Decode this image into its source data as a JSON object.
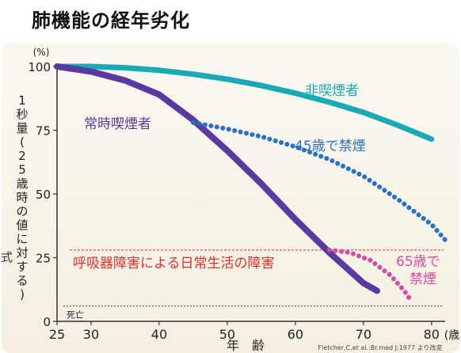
{
  "page_title": "肺機能の経年劣化",
  "chart_data": {
    "type": "line",
    "title": "肺機能の経年劣化",
    "xlabel": "年　齢",
    "x_unit": "(歳)",
    "ylabel": "1秒量(25歳時の値に対する)",
    "y_unit": "(%)",
    "xlim": [
      25,
      82
    ],
    "ylim": [
      0,
      100
    ],
    "x_ticks": [
      25,
      30,
      40,
      50,
      60,
      70,
      80
    ],
    "y_ticks": [
      0,
      25,
      50,
      75,
      100
    ],
    "series": [
      {
        "name": "非喫煙者",
        "color": "#1aa9b5",
        "style": "solid",
        "points": [
          [
            25,
            100
          ],
          [
            30,
            100
          ],
          [
            35,
            99.5
          ],
          [
            40,
            98.5
          ],
          [
            45,
            97
          ],
          [
            50,
            95
          ],
          [
            55,
            92.5
          ],
          [
            60,
            89.5
          ],
          [
            65,
            86
          ],
          [
            70,
            82
          ],
          [
            75,
            77
          ],
          [
            80,
            71.5
          ]
        ]
      },
      {
        "name": "常時喫煙者",
        "color": "#5a3aa0",
        "style": "solid",
        "points": [
          [
            25,
            100
          ],
          [
            30,
            98
          ],
          [
            35,
            94.5
          ],
          [
            40,
            89
          ],
          [
            45,
            79
          ],
          [
            50,
            67
          ],
          [
            55,
            54
          ],
          [
            60,
            40
          ],
          [
            65,
            27
          ],
          [
            70,
            15
          ],
          [
            72,
            12
          ]
        ]
      },
      {
        "name": "45歳で禁煙",
        "color": "#2a72c0",
        "style": "dotted",
        "points": [
          [
            45,
            78
          ],
          [
            50,
            75.5
          ],
          [
            55,
            72.5
          ],
          [
            60,
            68.5
          ],
          [
            65,
            63.5
          ],
          [
            70,
            57
          ],
          [
            75,
            48
          ],
          [
            80,
            38
          ],
          [
            82,
            32
          ]
        ]
      },
      {
        "name": "65歳で禁煙",
        "color": "#d14ea0",
        "style": "dotted",
        "points": [
          [
            65,
            28
          ],
          [
            68,
            27
          ],
          [
            71,
            24
          ],
          [
            74,
            18
          ],
          [
            76,
            12
          ],
          [
            77,
            8
          ]
        ]
      }
    ],
    "reference_lines": [
      {
        "label": "呼吸器障害による日常生活の障害",
        "y": 28,
        "color": "#e0302c"
      },
      {
        "label": "死亡",
        "y": 6,
        "color": "#555555"
      }
    ],
    "source": "Fletcher,C.et al.:Br.med J:1977 より改変"
  },
  "side_char": "式"
}
